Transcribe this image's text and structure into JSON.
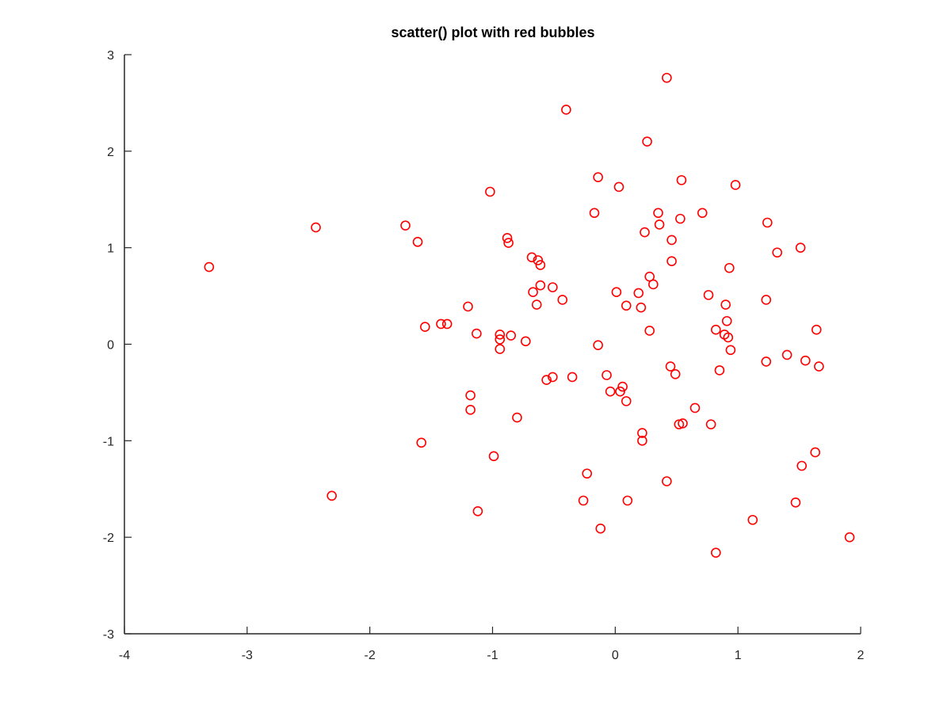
{
  "chart_data": {
    "type": "scatter",
    "title": "scatter() plot with red bubbles",
    "xlabel": "",
    "ylabel": "",
    "xlim": [
      -4,
      2
    ],
    "ylim": [
      -3,
      3
    ],
    "x_ticks": [
      -4,
      -3,
      -2,
      -1,
      0,
      1,
      2
    ],
    "y_ticks": [
      -3,
      -2,
      -1,
      0,
      1,
      2,
      3
    ],
    "grid": false,
    "marker": "open-circle",
    "color": "#ff0000",
    "points": [
      [
        -3.31,
        0.8
      ],
      [
        -2.44,
        1.21
      ],
      [
        -2.31,
        -1.57
      ],
      [
        -1.71,
        1.23
      ],
      [
        -1.61,
        1.06
      ],
      [
        -1.58,
        -1.02
      ],
      [
        -1.55,
        0.18
      ],
      [
        -1.42,
        0.21
      ],
      [
        -1.37,
        0.21
      ],
      [
        -1.2,
        0.39
      ],
      [
        -1.18,
        -0.53
      ],
      [
        -1.18,
        -0.68
      ],
      [
        -1.13,
        0.11
      ],
      [
        -1.12,
        -1.73
      ],
      [
        -1.02,
        1.58
      ],
      [
        -0.99,
        -1.16
      ],
      [
        -0.94,
        0.1
      ],
      [
        -0.94,
        0.05
      ],
      [
        -0.94,
        -0.05
      ],
      [
        -0.88,
        1.1
      ],
      [
        -0.87,
        1.05
      ],
      [
        -0.85,
        0.09
      ],
      [
        -0.8,
        -0.76
      ],
      [
        -0.73,
        0.03
      ],
      [
        -0.68,
        0.9
      ],
      [
        -0.67,
        0.54
      ],
      [
        -0.64,
        0.41
      ],
      [
        -0.63,
        0.87
      ],
      [
        -0.61,
        0.82
      ],
      [
        -0.61,
        0.61
      ],
      [
        -0.56,
        -0.37
      ],
      [
        -0.51,
        0.59
      ],
      [
        -0.51,
        -0.34
      ],
      [
        -0.43,
        0.46
      ],
      [
        -0.4,
        2.43
      ],
      [
        -0.35,
        -0.34
      ],
      [
        -0.26,
        -1.62
      ],
      [
        -0.23,
        -1.34
      ],
      [
        -0.17,
        1.36
      ],
      [
        -0.14,
        1.73
      ],
      [
        -0.14,
        -0.01
      ],
      [
        -0.12,
        -1.91
      ],
      [
        -0.07,
        -0.32
      ],
      [
        -0.04,
        -0.49
      ],
      [
        0.01,
        0.54
      ],
      [
        0.03,
        1.63
      ],
      [
        0.04,
        -0.49
      ],
      [
        0.06,
        -0.44
      ],
      [
        0.09,
        0.4
      ],
      [
        0.09,
        -0.59
      ],
      [
        0.1,
        -1.62
      ],
      [
        0.19,
        0.53
      ],
      [
        0.21,
        0.38
      ],
      [
        0.22,
        -1.0
      ],
      [
        0.22,
        -0.92
      ],
      [
        0.24,
        1.16
      ],
      [
        0.26,
        2.1
      ],
      [
        0.28,
        0.7
      ],
      [
        0.28,
        0.14
      ],
      [
        0.31,
        0.62
      ],
      [
        0.35,
        1.36
      ],
      [
        0.36,
        1.24
      ],
      [
        0.42,
        2.76
      ],
      [
        0.42,
        -1.42
      ],
      [
        0.45,
        -0.23
      ],
      [
        0.46,
        1.08
      ],
      [
        0.46,
        0.86
      ],
      [
        0.49,
        -0.31
      ],
      [
        0.52,
        -0.83
      ],
      [
        0.53,
        1.3
      ],
      [
        0.54,
        1.7
      ],
      [
        0.55,
        -0.82
      ],
      [
        0.65,
        -0.66
      ],
      [
        0.71,
        1.36
      ],
      [
        0.76,
        0.51
      ],
      [
        0.78,
        -0.83
      ],
      [
        0.82,
        0.15
      ],
      [
        0.82,
        -2.16
      ],
      [
        0.85,
        -0.27
      ],
      [
        0.89,
        0.1
      ],
      [
        0.9,
        0.41
      ],
      [
        0.91,
        0.24
      ],
      [
        0.92,
        0.07
      ],
      [
        0.93,
        0.79
      ],
      [
        0.94,
        -0.06
      ],
      [
        0.98,
        1.65
      ],
      [
        1.12,
        -1.82
      ],
      [
        1.23,
        0.46
      ],
      [
        1.23,
        -0.18
      ],
      [
        1.24,
        1.26
      ],
      [
        1.32,
        0.95
      ],
      [
        1.4,
        -0.11
      ],
      [
        1.47,
        -1.64
      ],
      [
        1.51,
        1.0
      ],
      [
        1.52,
        -1.26
      ],
      [
        1.55,
        -0.17
      ],
      [
        1.63,
        -1.12
      ],
      [
        1.64,
        0.15
      ],
      [
        1.66,
        -0.23
      ],
      [
        1.91,
        -2.0
      ]
    ]
  }
}
